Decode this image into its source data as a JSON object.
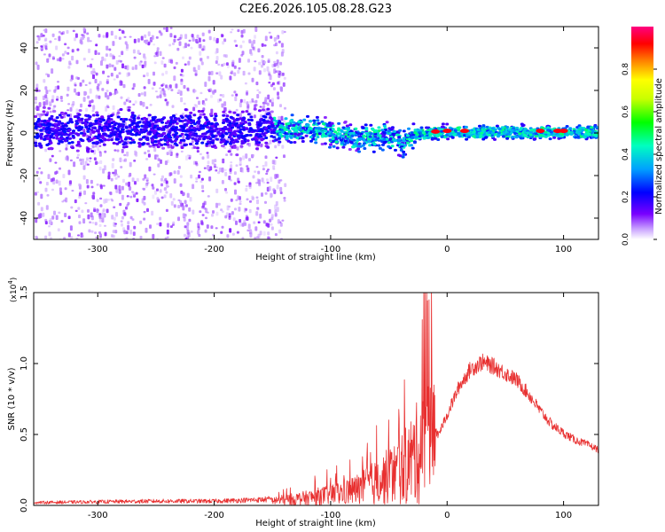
{
  "title": "C2E6.2026.105.08.28.G23",
  "chart_data": [
    {
      "type": "heatmap",
      "title": "C2E6.2026.105.08.28.G23",
      "xlabel": "Height of straight line (km)",
      "ylabel": "Frequency (Hz)",
      "xlim": [
        -355,
        130
      ],
      "ylim": [
        -50,
        50
      ],
      "xticks": [
        -300,
        -200,
        -100,
        0,
        100
      ],
      "xtick_labels": [
        "-300",
        "-200",
        "-100",
        "0",
        "100"
      ],
      "yticks": [
        -40,
        -20,
        0,
        20,
        40
      ],
      "ytick_labels": [
        "-40",
        "-20",
        "0",
        "20",
        "40"
      ],
      "ridge_center_hz": [
        {
          "x": -350,
          "y": 2
        },
        {
          "x": -200,
          "y": 2
        },
        {
          "x": -150,
          "y": 3
        },
        {
          "x": -120,
          "y": 2
        },
        {
          "x": -100,
          "y": 0
        },
        {
          "x": -80,
          "y": -2
        },
        {
          "x": -60,
          "y": -1
        },
        {
          "x": -50,
          "y": 0
        },
        {
          "x": -40,
          "y": -5
        },
        {
          "x": -30,
          "y": 0
        },
        {
          "x": 0,
          "y": 1
        },
        {
          "x": 50,
          "y": 1
        },
        {
          "x": 130,
          "y": 1
        }
      ],
      "hotspots_km": [
        -10,
        0,
        15,
        80,
        95,
        100
      ],
      "colorbar": {
        "label": "Normalized spectral amplitude",
        "range": [
          0,
          1
        ],
        "ticks": [
          0.0,
          0.2,
          0.4,
          0.6,
          0.8
        ],
        "tick_labels": [
          "0.0",
          "0.2",
          "0.4",
          "0.6",
          "0.8"
        ],
        "colors": [
          "#ffffff",
          "#a050ff",
          "#5000ff",
          "#0000ff",
          "#00c8ff",
          "#00ff80",
          "#a0ff00",
          "#ffff00",
          "#ff8000",
          "#ff0000",
          "#ff0080"
        ]
      }
    },
    {
      "type": "line",
      "xlabel": "Height of straight line (km)",
      "ylabel": "SNR (10 * v/v)",
      "yscale_label": "(x10",
      "yscale_exp": "4",
      "yscale_close": ")",
      "xlim": [
        -355,
        130
      ],
      "ylim": [
        0,
        1.5
      ],
      "xticks": [
        -300,
        -200,
        -100,
        0,
        100
      ],
      "xtick_labels": [
        "-300",
        "-200",
        "-100",
        "0",
        "100"
      ],
      "yticks": [
        0.0,
        0.5,
        1.0,
        1.5
      ],
      "ytick_labels": [
        "0.0",
        "0.5",
        "1.0",
        "1.5"
      ],
      "color": "#e83030",
      "series": [
        {
          "name": "SNR",
          "x": [
            -355,
            -250,
            -200,
            -160,
            -140,
            -120,
            -100,
            -80,
            -60,
            -45,
            -35,
            -25,
            -20,
            -15,
            -12,
            -8,
            0,
            10,
            20,
            30,
            40,
            50,
            60,
            70,
            80,
            90,
            100,
            110,
            120,
            130
          ],
          "y": [
            0.02,
            0.03,
            0.03,
            0.04,
            0.05,
            0.07,
            0.1,
            0.14,
            0.22,
            0.3,
            0.38,
            0.5,
            0.6,
            0.7,
            0.6,
            0.5,
            0.65,
            0.85,
            0.98,
            1.03,
            1.0,
            0.95,
            0.9,
            0.8,
            0.68,
            0.58,
            0.52,
            0.47,
            0.44,
            0.4
          ]
        }
      ]
    }
  ]
}
